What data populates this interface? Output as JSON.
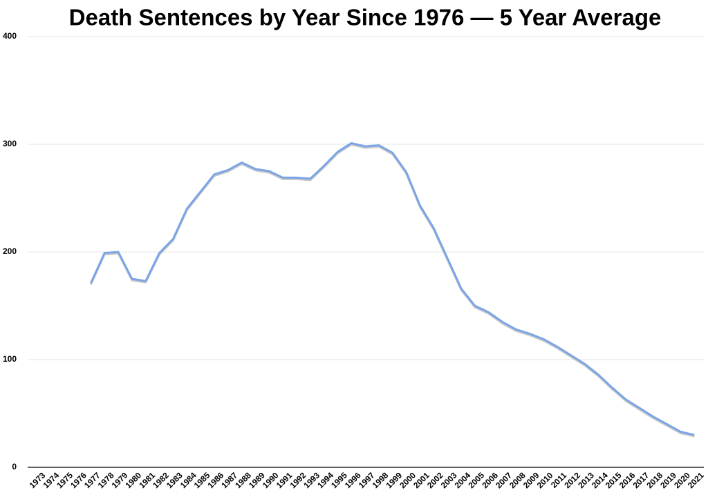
{
  "chart_data": {
    "type": "line",
    "title": "Death Sentences by Year Since 1976 — 5 Year Average",
    "categories": [
      "1973",
      "1974",
      "1975",
      "1976",
      "1977",
      "1978",
      "1979",
      "1980",
      "1981",
      "1982",
      "1983",
      "1984",
      "1985",
      "1986",
      "1987",
      "1988",
      "1989",
      "1990",
      "1991",
      "1992",
      "1993",
      "1994",
      "1995",
      "1996",
      "1997",
      "1998",
      "1999",
      "2000",
      "2001",
      "2002",
      "2003",
      "2004",
      "2005",
      "2006",
      "2007",
      "2008",
      "2009",
      "2010",
      "2011",
      "2012",
      "2013",
      "2014",
      "2015",
      "2016",
      "2017",
      "2018",
      "2019",
      "2020",
      "2021"
    ],
    "series": [
      {
        "color": "#7ba4e6",
        "values": [
          null,
          null,
          null,
          null,
          171,
          199,
          200,
          175,
          173,
          199,
          212,
          240,
          256,
          272,
          276,
          283,
          277,
          275,
          269,
          269,
          268,
          280,
          293,
          301,
          298,
          299,
          292,
          274,
          243,
          222,
          194,
          166,
          150,
          144,
          135,
          128,
          124,
          119,
          112,
          104,
          96,
          86,
          74,
          63,
          55,
          47,
          40,
          33,
          30
        ]
      }
    ],
    "ylim": [
      0,
      400
    ],
    "yticks": [
      0,
      100,
      200,
      300,
      400
    ],
    "grid": true
  }
}
